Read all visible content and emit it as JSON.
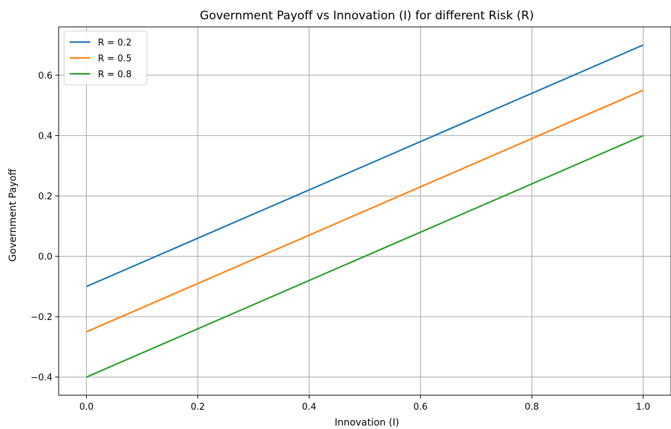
{
  "chart_data": {
    "type": "line",
    "title": "Government Payoff vs Innovation (I) for different Risk (R)",
    "xlabel": "Innovation (I)",
    "ylabel": "Government Payoff",
    "xlim": [
      -0.05,
      1.05
    ],
    "ylim": [
      -0.46,
      0.76
    ],
    "x_ticks": [
      0.0,
      0.2,
      0.4,
      0.6,
      0.8,
      1.0
    ],
    "x_tick_labels": [
      "0.0",
      "0.2",
      "0.4",
      "0.6",
      "0.8",
      "1.0"
    ],
    "y_ticks": [
      -0.4,
      -0.2,
      0.0,
      0.2,
      0.4,
      0.6
    ],
    "y_tick_labels": [
      "−0.4",
      "−0.2",
      "0.0",
      "0.2",
      "0.4",
      "0.6"
    ],
    "grid": true,
    "legend_position": "top-left",
    "series": [
      {
        "name": "R = 0.2",
        "color": "#1f77b4",
        "x": [
          0.0,
          1.0
        ],
        "y": [
          -0.1,
          0.7
        ]
      },
      {
        "name": "R = 0.5",
        "color": "#ff7f0e",
        "x": [
          0.0,
          1.0
        ],
        "y": [
          -0.25,
          0.55
        ]
      },
      {
        "name": "R = 0.8",
        "color": "#2ca02c",
        "x": [
          0.0,
          1.0
        ],
        "y": [
          -0.4,
          0.4
        ]
      }
    ]
  }
}
